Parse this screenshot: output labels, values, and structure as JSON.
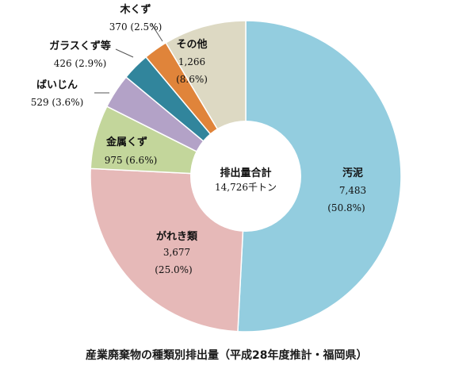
{
  "chart_data": {
    "type": "pie",
    "title": "産業廃棄物の種類別排出量（平成28年度推計・福岡県）",
    "center_label": "排出量合計",
    "center_value": "14,726千トン",
    "slices": [
      {
        "name": "汚泥",
        "value": 7483,
        "value_label": "7,483",
        "percent": 50.8,
        "percent_label": "(50.8%)",
        "color": "#93cddf"
      },
      {
        "name": "がれき類",
        "value": 3677,
        "value_label": "3,677",
        "percent": 25.0,
        "percent_label": "(25.0%)",
        "color": "#e6b9b8"
      },
      {
        "name": "金属くず",
        "value": 975,
        "value_label": "975 (6.6%)",
        "percent": 6.6,
        "percent_label": "",
        "color": "#c3d69b"
      },
      {
        "name": "ばいじん",
        "value": 529,
        "value_label": "529 (3.6%)",
        "percent": 3.6,
        "percent_label": "",
        "color": "#b3a2c7"
      },
      {
        "name": "ガラスくず等",
        "value": 426,
        "value_label": "426 (2.9%)",
        "percent": 2.9,
        "percent_label": "",
        "color": "#31859c"
      },
      {
        "name": "木くず",
        "value": 370,
        "value_label": "370 (2.5%)",
        "percent": 2.5,
        "percent_label": "",
        "color": "#e0843a"
      },
      {
        "name": "その他",
        "value": 1266,
        "value_label": "1,266",
        "percent": 8.6,
        "percent_label": "(8.6%)",
        "color": "#ddd9c3"
      }
    ],
    "start_angle_deg": 0,
    "direction": "clockwise"
  }
}
